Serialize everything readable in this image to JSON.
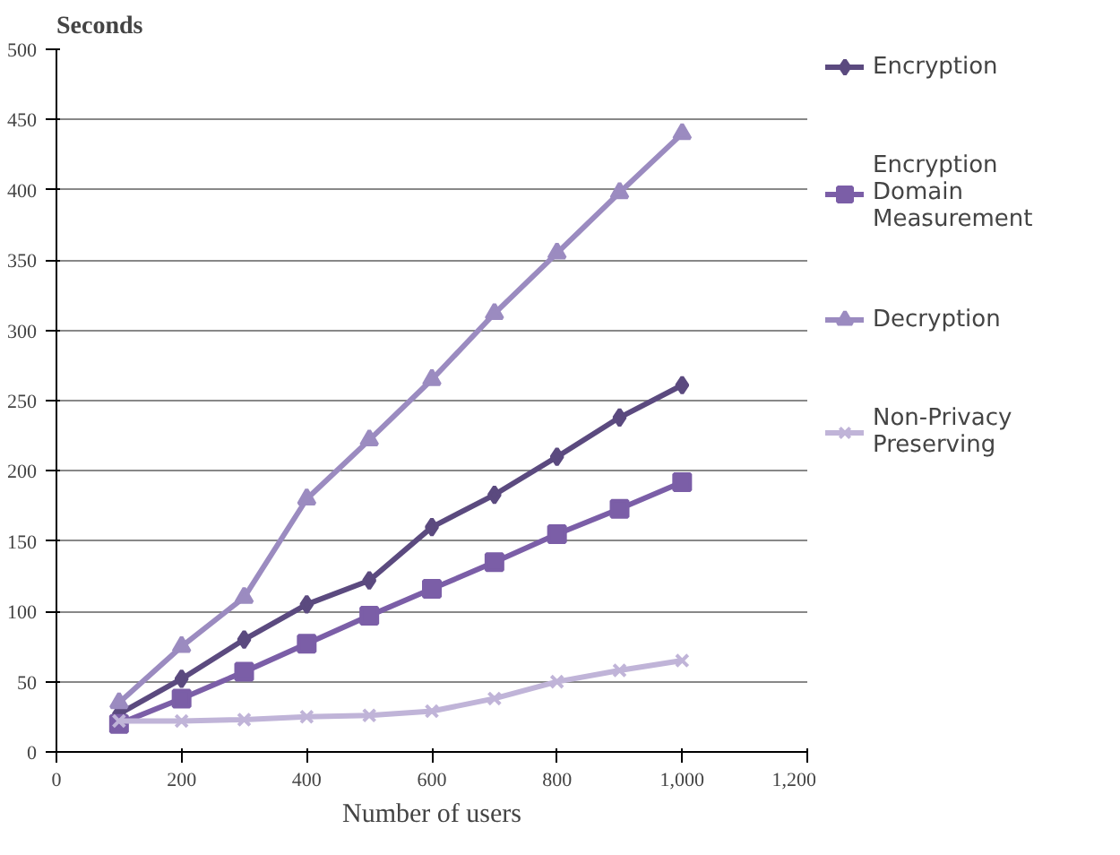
{
  "chart_data": {
    "type": "line",
    "ylabel": "Seconds",
    "xlabel": "Number of users",
    "x": [
      100,
      200,
      300,
      400,
      500,
      600,
      700,
      800,
      900,
      1000
    ],
    "xlim": [
      0,
      1200
    ],
    "xticks": [
      0,
      200,
      400,
      600,
      800,
      {
        "value": 1000,
        "label": "1,000"
      },
      {
        "value": 1200,
        "label": "1,200"
      }
    ],
    "ylim": [
      0,
      500
    ],
    "yticks": [
      0,
      50,
      100,
      150,
      200,
      250,
      300,
      350,
      400,
      450,
      500
    ],
    "grid": "y",
    "legend": "right",
    "series": [
      {
        "name": "Encryption",
        "color": "#5b4a7f",
        "marker": "diamond",
        "values": [
          27,
          52,
          80,
          105,
          122,
          160,
          183,
          210,
          238,
          261
        ]
      },
      {
        "name": "Encryption Domain Measurement",
        "color": "#7b5ea7",
        "marker": "square",
        "values": [
          20,
          38,
          57,
          77,
          97,
          116,
          135,
          155,
          173,
          192
        ]
      },
      {
        "name": "Decryption",
        "color": "#9b8bc0",
        "marker": "triangle",
        "values": [
          35,
          75,
          110,
          180,
          222,
          265,
          312,
          355,
          398,
          440
        ]
      },
      {
        "name": "Non-Privacy Preserving",
        "color": "#c0b4d8",
        "marker": "cross",
        "values": [
          22,
          22,
          23,
          25,
          26,
          29,
          38,
          50,
          58,
          65
        ]
      }
    ]
  }
}
